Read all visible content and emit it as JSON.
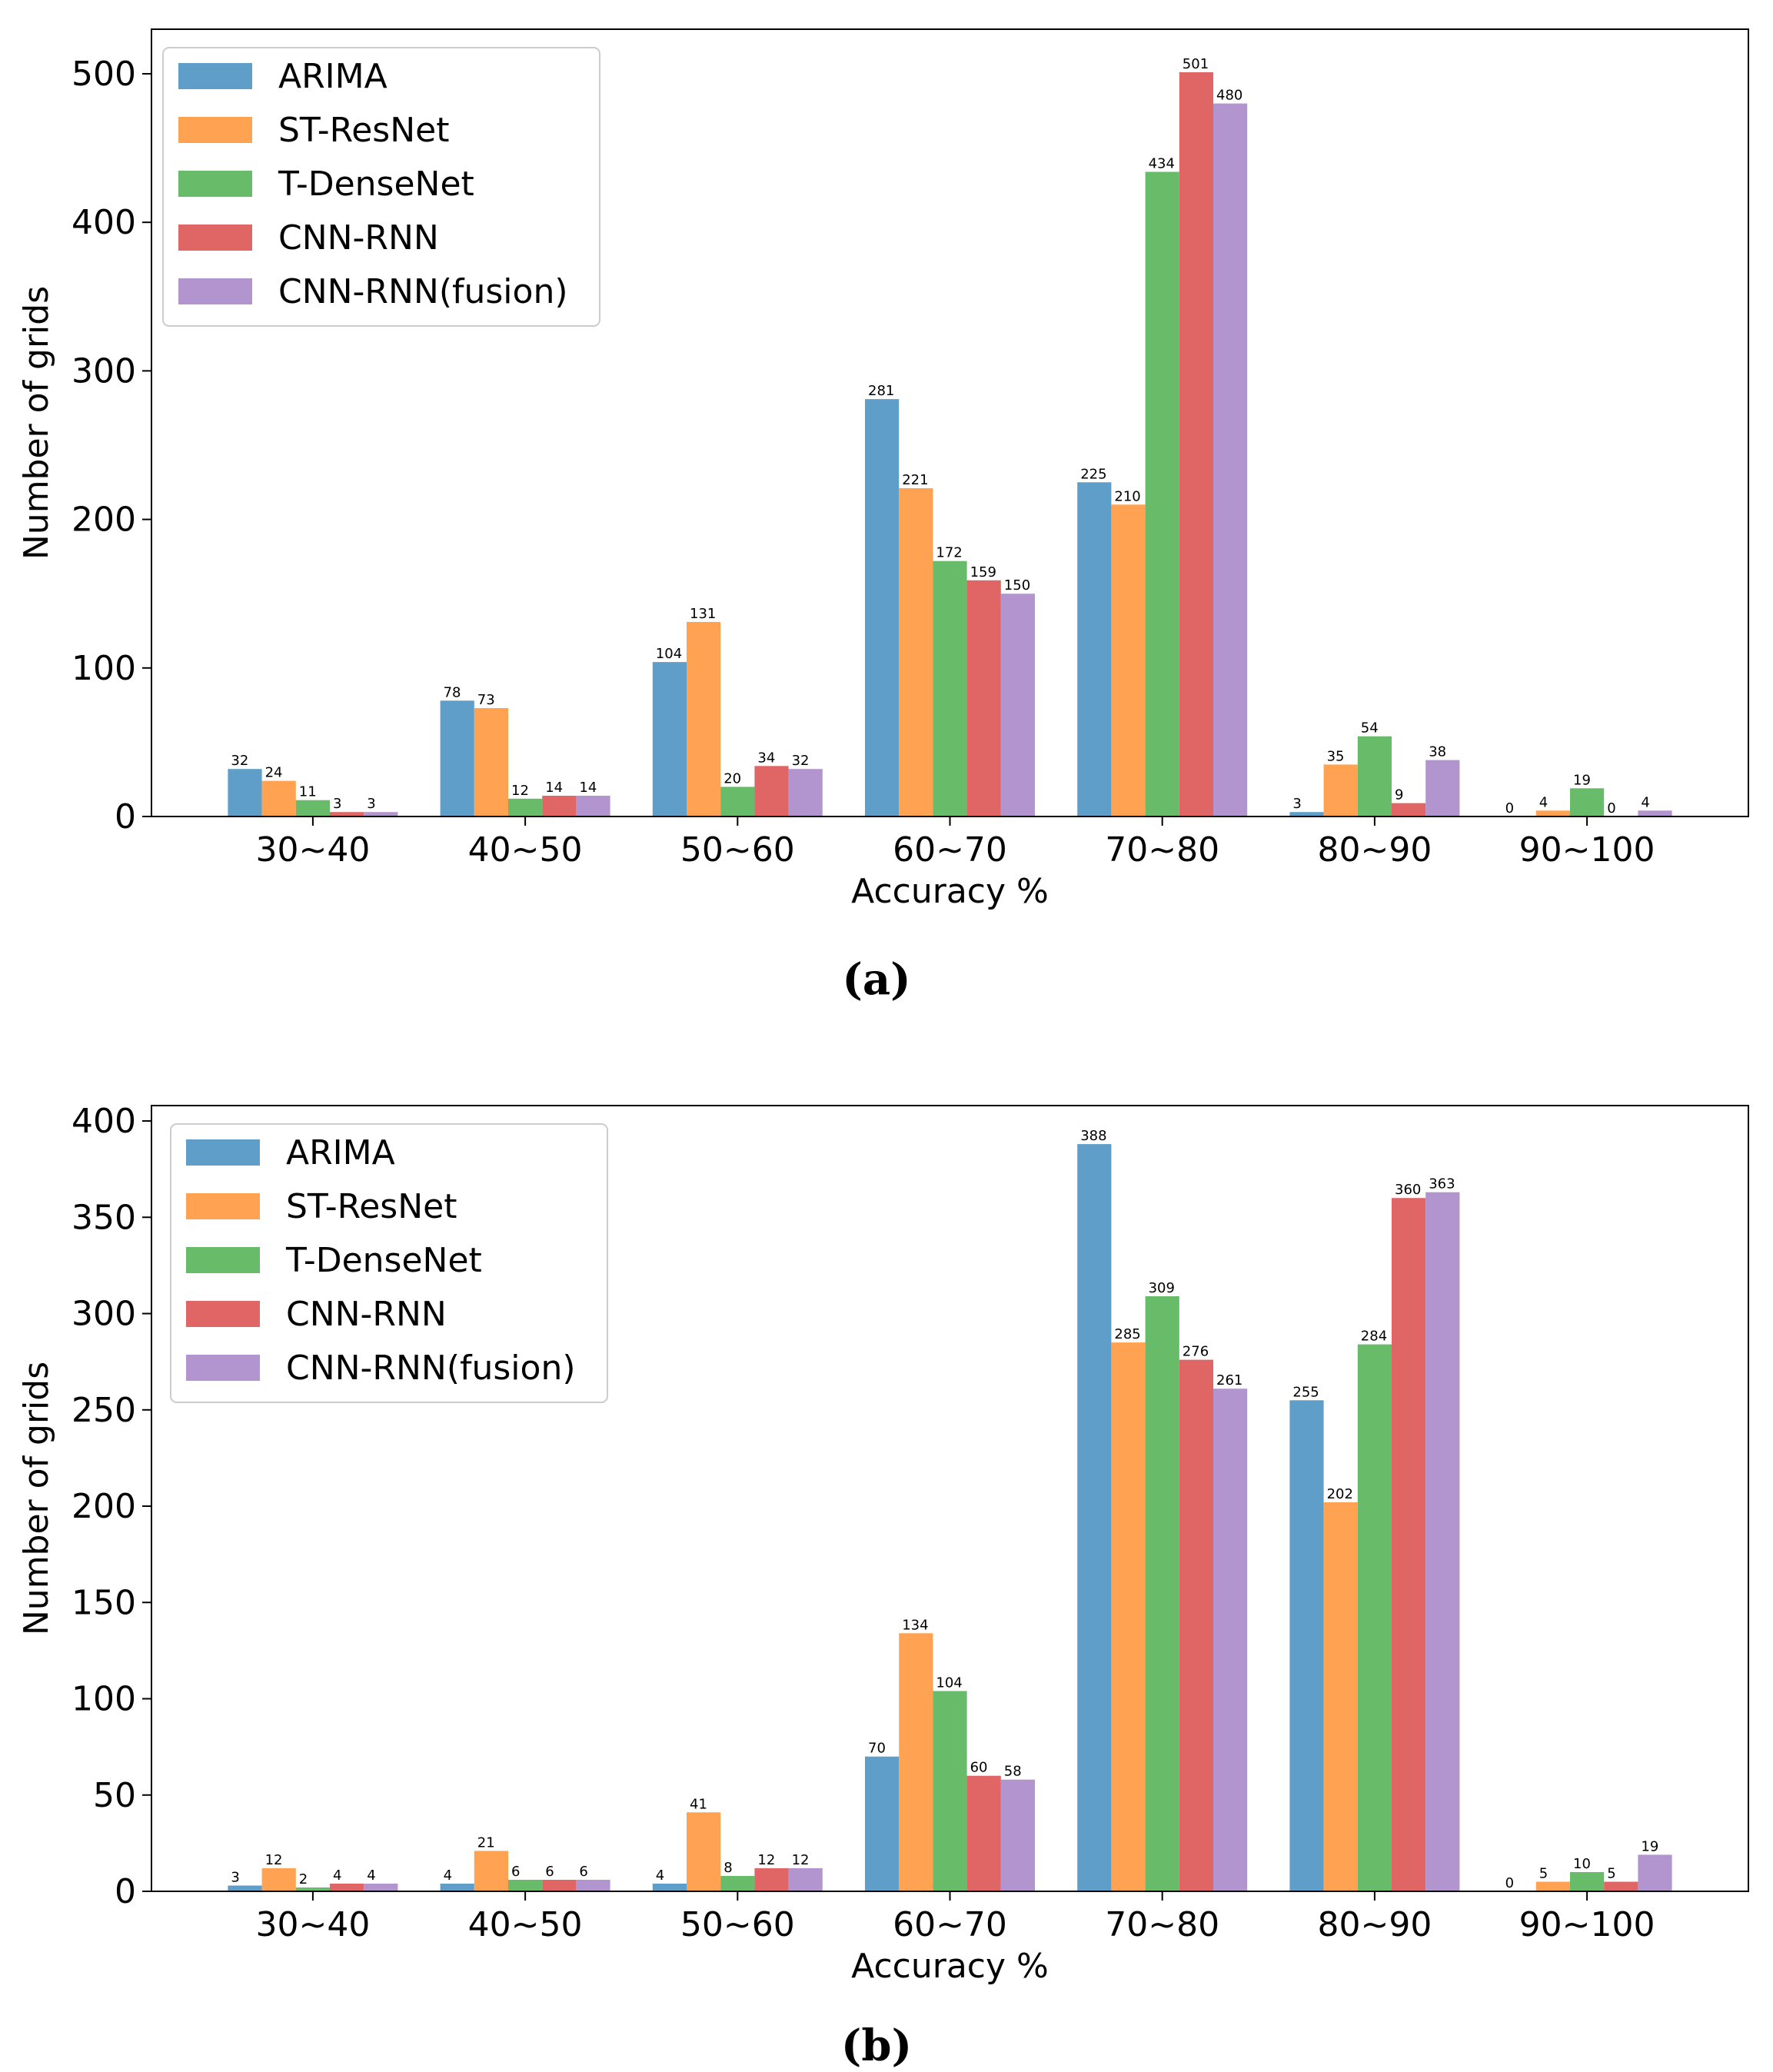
{
  "series_colors": [
    "#5f9ec8",
    "#ffa352",
    "#68bb68",
    "#e06565",
    "#b294cf"
  ],
  "chart_data": [
    {
      "type": "bar",
      "caption": "(a)",
      "xlabel": "Accuracy %",
      "ylabel": "Number of grids",
      "categories": [
        "30~40",
        "40~50",
        "50~60",
        "60~70",
        "70~80",
        "80~90",
        "90~100"
      ],
      "ylim": [
        0,
        530
      ],
      "yticks": [
        0,
        100,
        200,
        300,
        400,
        500
      ],
      "legend": "top-left",
      "series": [
        {
          "name": "ARIMA",
          "values": [
            32,
            78,
            104,
            281,
            225,
            3,
            0
          ]
        },
        {
          "name": "ST-ResNet",
          "values": [
            24,
            73,
            131,
            221,
            210,
            35,
            4
          ]
        },
        {
          "name": "T-DenseNet",
          "values": [
            11,
            12,
            20,
            172,
            434,
            54,
            19
          ]
        },
        {
          "name": "CNN-RNN",
          "values": [
            3,
            14,
            34,
            159,
            501,
            9,
            0
          ]
        },
        {
          "name": "CNN-RNN(fusion)",
          "values": [
            3,
            14,
            32,
            150,
            480,
            38,
            4
          ]
        }
      ]
    },
    {
      "type": "bar",
      "caption": "(b)",
      "xlabel": "Accuracy %",
      "ylabel": "Number of grids",
      "categories": [
        "30~40",
        "40~50",
        "50~60",
        "60~70",
        "70~80",
        "80~90",
        "90~100"
      ],
      "ylim": [
        0,
        408
      ],
      "yticks": [
        0,
        50,
        100,
        150,
        200,
        250,
        300,
        350,
        400
      ],
      "legend": "top-left",
      "series": [
        {
          "name": "ARIMA",
          "values": [
            3,
            4,
            4,
            70,
            388,
            255,
            0
          ]
        },
        {
          "name": "ST-ResNet",
          "values": [
            12,
            21,
            41,
            134,
            285,
            202,
            5
          ]
        },
        {
          "name": "T-DenseNet",
          "values": [
            2,
            6,
            8,
            104,
            309,
            284,
            10
          ]
        },
        {
          "name": "CNN-RNN",
          "values": [
            4,
            6,
            12,
            60,
            276,
            360,
            5
          ]
        },
        {
          "name": "CNN-RNN(fusion)",
          "values": [
            4,
            6,
            12,
            58,
            261,
            363,
            19
          ]
        }
      ]
    }
  ]
}
